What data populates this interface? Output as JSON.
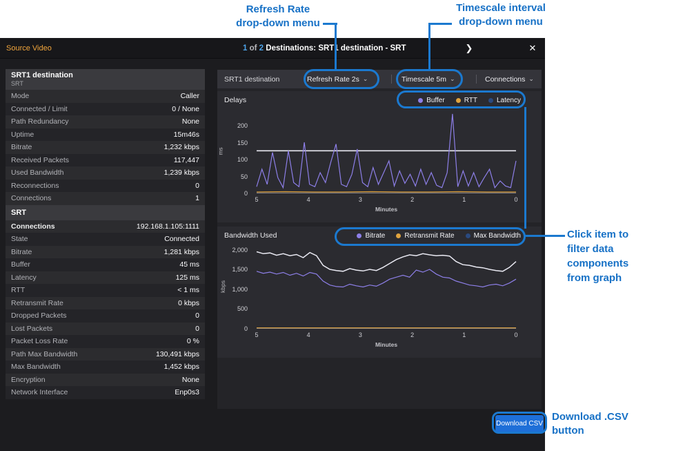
{
  "header": {
    "source_label": "Source Video",
    "count_current": "1",
    "count_word": "of",
    "count_total": "2",
    "title_rest": "Destinations: SRT1 destination - SRT",
    "next_icon": "❯",
    "close_icon": "✕"
  },
  "sidebar": {
    "title": "SRT1 destination",
    "subtitle": "SRT",
    "general_rows": [
      {
        "label": "Mode",
        "value": "Caller"
      },
      {
        "label": "Connected / Limit",
        "value": "0 / None"
      },
      {
        "label": "Path Redundancy",
        "value": "None"
      },
      {
        "label": "Uptime",
        "value": "15m46s"
      },
      {
        "label": "Bitrate",
        "value": "1,232 kbps"
      },
      {
        "label": "Received Packets",
        "value": "117,447"
      },
      {
        "label": "Used Bandwidth",
        "value": "1,239 kbps"
      },
      {
        "label": "Reconnections",
        "value": "0"
      },
      {
        "label": "Connections",
        "value": "1"
      }
    ],
    "section_title": "SRT",
    "srt_rows": [
      {
        "label": "Connections",
        "value": "192.168.1.105:1111"
      },
      {
        "label": "State",
        "value": "Connected"
      },
      {
        "label": "Bitrate",
        "value": "1,281 kbps"
      },
      {
        "label": "Buffer",
        "value": "45 ms"
      },
      {
        "label": "Latency",
        "value": "125 ms"
      },
      {
        "label": "RTT",
        "value": "< 1 ms"
      },
      {
        "label": "Retransmit Rate",
        "value": "0 kbps"
      },
      {
        "label": "Dropped Packets",
        "value": "0"
      },
      {
        "label": "Lost Packets",
        "value": "0"
      },
      {
        "label": "Packet Loss Rate",
        "value": "0 %"
      },
      {
        "label": "Path Max Bandwidth",
        "value": "130,491 kbps"
      },
      {
        "label": "Max Bandwidth",
        "value": "1,452 kbps"
      },
      {
        "label": "Encryption",
        "value": "None"
      },
      {
        "label": "Network Interface",
        "value": "Enp0s3"
      }
    ]
  },
  "toolbar": {
    "destination_label": "SRT1 destination",
    "refresh_rate_label": "Refresh Rate 2s",
    "timescale_label": "Timescale 5m",
    "connections_label": "Connections",
    "chevron": "⌄"
  },
  "footer": {
    "download_csv_label": "Download CSV"
  },
  "annotations": {
    "refresh": "Refresh Rate\ndrop-down menu",
    "timescale": "Timescale interval\ndrop-down menu",
    "filter": "Click item to\nfilter data\ncomponents\nfrom graph",
    "download": "Download .CSV\nbutton"
  },
  "colors": {
    "callout_blue": "#1b79cf",
    "annotation_blue": "#1771c6",
    "header_orange": "#f2a63c",
    "count_blue": "#4da3e8",
    "button_blue": "#1e6fd8"
  },
  "chart_data": [
    {
      "type": "line",
      "title": "Delays",
      "ylabel": "ms",
      "xlabel": "Minutes",
      "x_ticks": [
        "5",
        "4",
        "3",
        "2",
        "1",
        "0"
      ],
      "y_ticks": [
        "200",
        "150",
        "100",
        "50",
        "0"
      ],
      "ylim": [
        0,
        245
      ],
      "legend_position": "top-right",
      "grid": false,
      "series": [
        {
          "name": "Buffer",
          "color": "#8d7fe8",
          "dot": "#8d7fe8",
          "sw": 1.2,
          "values": [
            18,
            70,
            25,
            120,
            45,
            15,
            125,
            30,
            18,
            150,
            25,
            18,
            60,
            30,
            90,
            145,
            25,
            18,
            55,
            130,
            30,
            18,
            75,
            25,
            60,
            95,
            20,
            65,
            28,
            55,
            20,
            70,
            25,
            60,
            22,
            15,
            60,
            235,
            18,
            65,
            20,
            60,
            18,
            45,
            70,
            15,
            35,
            20,
            15,
            95
          ]
        },
        {
          "name": "RTT",
          "color": "#e0a33e",
          "dot": "#e0a33e",
          "sw": 1.2,
          "values": [
            2,
            3,
            2,
            2,
            3,
            2,
            2,
            3,
            2,
            2
          ]
        },
        {
          "name": "Latency",
          "color": "#e9e9f2",
          "dot": "#2a4a80",
          "sw": 1.6,
          "values": [
            125,
            125,
            125,
            125,
            125,
            125
          ]
        }
      ]
    },
    {
      "type": "line",
      "title": "Bandwidth Used",
      "ylabel": "kbps",
      "xlabel": "Minutes",
      "x_ticks": [
        "5",
        "4",
        "3",
        "2",
        "1",
        "0"
      ],
      "y_ticks": [
        "2,000",
        "1,500",
        "1,000",
        "500",
        "0"
      ],
      "ylim": [
        0,
        2100
      ],
      "legend_position": "top-right",
      "grid": false,
      "series": [
        {
          "name": "Bitrate",
          "color": "#8d7fe8",
          "dot": "#8d7fe8",
          "sw": 1.2,
          "values": [
            1450,
            1400,
            1430,
            1380,
            1420,
            1350,
            1400,
            1330,
            1420,
            1380,
            1200,
            1100,
            1060,
            1050,
            1120,
            1080,
            1050,
            1100,
            1070,
            1150,
            1250,
            1300,
            1350,
            1300,
            1480,
            1430,
            1500,
            1380,
            1300,
            1280,
            1200,
            1150,
            1100,
            1080,
            1050,
            1100,
            1120,
            1080,
            1150,
            1250
          ]
        },
        {
          "name": "Retransmit Rate",
          "color": "#e0a33e",
          "dot": "#e0a33e",
          "sw": 1.2,
          "values": [
            5,
            5,
            5,
            5,
            5,
            5,
            5,
            5,
            5,
            5
          ]
        },
        {
          "name": "Max Bandwidth",
          "color": "#e9e9f2",
          "dot": "#2a4a80",
          "sw": 1.5,
          "values": [
            1950,
            1900,
            1920,
            1860,
            1900,
            1850,
            1880,
            1800,
            1930,
            1850,
            1600,
            1500,
            1470,
            1450,
            1520,
            1480,
            1460,
            1500,
            1470,
            1550,
            1650,
            1750,
            1820,
            1870,
            1850,
            1900,
            1870,
            1850,
            1860,
            1840,
            1700,
            1620,
            1600,
            1560,
            1540,
            1500,
            1470,
            1450,
            1550,
            1700
          ]
        }
      ]
    }
  ]
}
